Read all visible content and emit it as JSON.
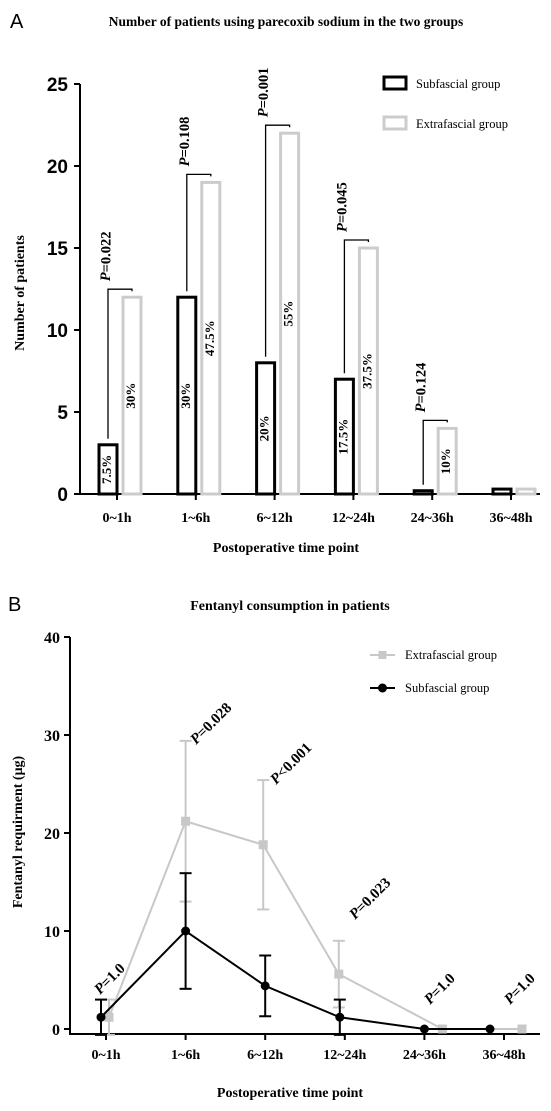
{
  "panels": [
    {
      "letter": "A",
      "chart_data": {
        "type": "bar",
        "title": "Number of patients using parecoxib sodium in the two groups",
        "xlabel": "Postoperative time point",
        "ylabel": "Number of patients",
        "categories": [
          "0~1h",
          "1~6h",
          "6~12h",
          "12~24h",
          "24~36h",
          "36~48h"
        ],
        "ylim": [
          0,
          25
        ],
        "yticks": [
          "0",
          "5",
          "10",
          "15",
          "20",
          "25"
        ],
        "legend_position": "top-right",
        "series": [
          {
            "name": "Subfascial group",
            "values": [
              3,
              12,
              8,
              7,
              0.2,
              0.3
            ],
            "percent_labels": [
              "7.5%",
              "30%",
              "20%",
              "17.5%",
              "",
              ""
            ],
            "color": "#000000"
          },
          {
            "name": "Extrafascial group",
            "values": [
              12,
              19,
              22,
              15,
              4,
              0.3
            ],
            "percent_labels": [
              "30%",
              "47.5%",
              "55%",
              "37.5%",
              "10%",
              ""
            ],
            "color": "#cccccc"
          }
        ],
        "p_values": [
          "P=0.022",
          "P=0.108",
          "P=0.001",
          "P=0.045",
          "P=0.124",
          ""
        ]
      }
    },
    {
      "letter": "B",
      "chart_data": {
        "type": "line",
        "title": "Fentanyl consumption in patients",
        "xlabel": "Postoperative time point",
        "ylabel": "Fentanyl requirment (μg)",
        "categories": [
          "0~1h",
          "1~6h",
          "6~12h",
          "12~24h",
          "24~36h",
          "36~48h"
        ],
        "ylim": [
          0,
          40
        ],
        "yticks": [
          "0",
          "10",
          "20",
          "30",
          "40"
        ],
        "legend_position": "top-right",
        "series": [
          {
            "name": "Extrafascial group",
            "values": [
              1.2,
              21.2,
              18.8,
              5.6,
              0,
              0
            ],
            "err": [
              1.8,
              8.2,
              6.6,
              3.4,
              0,
              0
            ],
            "color": "#c8c8c8",
            "marker": "square"
          },
          {
            "name": "Subfascial group",
            "values": [
              1.2,
              10,
              4.4,
              1.2,
              0,
              0
            ],
            "err": [
              1.8,
              5.9,
              3.1,
              1.8,
              0,
              0
            ],
            "color": "#000000",
            "marker": "circle"
          }
        ],
        "p_values": [
          "P=1.0",
          "P=0.028",
          "P<0.001",
          "P=0.023",
          "P=1.0",
          "P=1.0"
        ]
      }
    }
  ]
}
